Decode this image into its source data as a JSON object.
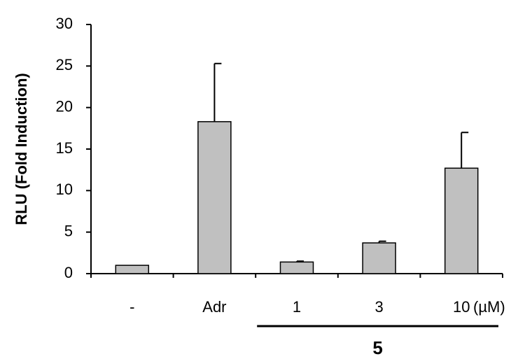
{
  "chart_data": {
    "type": "bar",
    "title": "",
    "xlabel": "",
    "ylabel": "RLU (Fold Induction)",
    "ylim": [
      0,
      30
    ],
    "yticks": [
      0,
      5,
      10,
      15,
      20,
      25,
      30
    ],
    "categories": [
      "-",
      "Adr",
      "1",
      "3",
      "10"
    ],
    "values": [
      1.0,
      18.3,
      1.4,
      3.7,
      12.7
    ],
    "error_upper": [
      0.0,
      7.0,
      0.1,
      0.2,
      4.3
    ],
    "x_unit": "(µM)",
    "group_label": "5",
    "group_members": [
      "1",
      "3",
      "10"
    ],
    "bar_color": "#c0c0c0",
    "grid": false,
    "legend": "none"
  }
}
